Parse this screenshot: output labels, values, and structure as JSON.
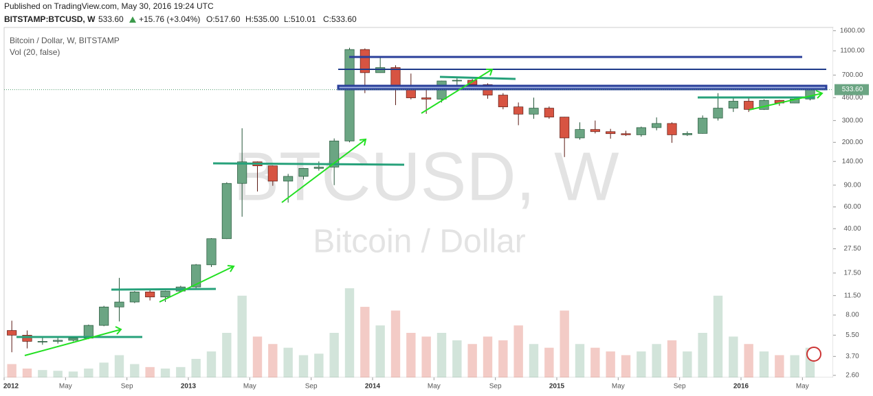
{
  "header": {
    "published": "Published on TradingView.com, May 30, 2016 19:24 UTC",
    "symbol": "BITSTAMP:BTCUSD, W",
    "price": "533.60",
    "change": "+15.76 (+3.04%)",
    "open": "O:517.60",
    "high": "H:535.00",
    "low": "L:510.01",
    "close": "C:533.60"
  },
  "chart_data": {
    "type": "candlestick",
    "title": "Bitcoin / Dollar, W, BITSTAMP",
    "subtitle": "Vol (20, false)",
    "watermark": "BTCUSD, W",
    "watermark_sub": "Bitcoin / Dollar",
    "log_scale": true,
    "up_color": "#6ba583",
    "down_color": "#d75442",
    "x": [
      "2012-01",
      "2012-02",
      "2012-03",
      "2012-04",
      "2012-05",
      "2012-06",
      "2012-07",
      "2012-08",
      "2012-09",
      "2012-10",
      "2012-11",
      "2012-12",
      "2013-01",
      "2013-02",
      "2013-03",
      "2013-04",
      "2013-05",
      "2013-06",
      "2013-07",
      "2013-08",
      "2013-09",
      "2013-10",
      "2013-11",
      "2013-12",
      "2014-01",
      "2014-02",
      "2014-03",
      "2014-04",
      "2014-05",
      "2014-06",
      "2014-07",
      "2014-08",
      "2014-09",
      "2014-10",
      "2014-11",
      "2014-12",
      "2015-01",
      "2015-02",
      "2015-03",
      "2015-04",
      "2015-05",
      "2015-06",
      "2015-07",
      "2015-08",
      "2015-09",
      "2015-10",
      "2015-11",
      "2015-12",
      "2016-01",
      "2016-02",
      "2016-03",
      "2016-04",
      "2016-05"
    ],
    "open": [
      6.0,
      5.5,
      4.9,
      4.9,
      5.0,
      5.2,
      6.6,
      9.3,
      10.2,
      12.3,
      11.2,
      12.5,
      13.5,
      20.4,
      33.2,
      93,
      139,
      129,
      97,
      106,
      123,
      126,
      205,
      1127,
      732,
      805,
      550,
      458,
      447,
      627,
      635,
      586,
      482,
      387,
      338,
      378,
      320,
      217,
      254,
      244,
      235,
      230,
      263,
      284,
      230,
      236,
      314,
      378,
      430,
      369,
      437,
      416,
      448
    ],
    "high": [
      7.2,
      6.0,
      5.4,
      5.3,
      5.3,
      6.7,
      9.5,
      16,
      12.5,
      12.9,
      12.6,
      13.8,
      20.7,
      33.5,
      95,
      260,
      140,
      130,
      111,
      124,
      140,
      215,
      1163,
      1150,
      1000,
      840,
      720,
      550,
      630,
      680,
      650,
      600,
      500,
      420,
      460,
      390,
      321,
      290,
      300,
      257,
      248,
      268,
      318,
      290,
      245,
      330,
      500,
      470,
      462,
      445,
      440,
      467,
      535
    ],
    "low": [
      4.0,
      4.3,
      4.6,
      4.7,
      4.9,
      5.1,
      6.5,
      7.1,
      10,
      10.5,
      10.2,
      12.3,
      13.2,
      19.6,
      33,
      50,
      80,
      89,
      65,
      100,
      118,
      90,
      200,
      500,
      730,
      400,
      445,
      340,
      420,
      540,
      560,
      450,
      370,
      275,
      310,
      310,
      152,
      210,
      236,
      214,
      225,
      222,
      250,
      198,
      225,
      235,
      300,
      352,
      352,
      366,
      395,
      414,
      437
    ],
    "close": [
      5.5,
      4.9,
      4.9,
      5.0,
      5.2,
      6.6,
      9.3,
      10.2,
      12.3,
      11.2,
      12.5,
      13.5,
      20.4,
      33.2,
      93,
      139,
      129,
      97,
      106,
      123,
      126,
      205,
      1127,
      732,
      805,
      550,
      458,
      447,
      627,
      635,
      586,
      482,
      387,
      338,
      378,
      320,
      217,
      254,
      244,
      235,
      230,
      263,
      284,
      230,
      236,
      314,
      378,
      430,
      369,
      437,
      416,
      448,
      533.6
    ],
    "volume": [
      18,
      12,
      10,
      9,
      8,
      12,
      20,
      30,
      18,
      14,
      12,
      14,
      25,
      35,
      60,
      110,
      55,
      45,
      40,
      30,
      32,
      60,
      120,
      95,
      70,
      90,
      60,
      55,
      60,
      50,
      45,
      55,
      50,
      70,
      45,
      40,
      90,
      45,
      40,
      35,
      30,
      35,
      45,
      50,
      35,
      60,
      110,
      55,
      45,
      35,
      30,
      30,
      40
    ],
    "last_price": {
      "value": 533.6,
      "label": "533.60"
    },
    "ylim": [
      2.5,
      1700
    ],
    "yticks": [
      {
        "value": 1600,
        "label": "1600.00"
      },
      {
        "value": 1100,
        "label": "1100.00"
      },
      {
        "value": 700,
        "label": "700.00"
      },
      {
        "value": 460,
        "label": "460.00"
      },
      {
        "value": 300,
        "label": "300.00"
      },
      {
        "value": 200,
        "label": "200.00"
      },
      {
        "value": 140,
        "label": "140.00"
      },
      {
        "value": 90,
        "label": "90.00"
      },
      {
        "value": 60,
        "label": "60.00"
      },
      {
        "value": 40,
        "label": "40.00"
      },
      {
        "value": 27.5,
        "label": "27.50"
      },
      {
        "value": 17.5,
        "label": "17.50"
      },
      {
        "value": 11.5,
        "label": "11.50"
      },
      {
        "value": 8,
        "label": "8.00"
      },
      {
        "value": 5.5,
        "label": "5.50"
      },
      {
        "value": 3.7,
        "label": "3.70"
      },
      {
        "value": 2.6,
        "label": "2.60"
      }
    ],
    "xlim": [
      "2012-01",
      "2016-07"
    ],
    "xticks": [
      {
        "value": "2012-01",
        "label": "2012"
      },
      {
        "value": "2012-05",
        "label": "May"
      },
      {
        "value": "2012-09",
        "label": "Sep"
      },
      {
        "value": "2013-01",
        "label": "2013"
      },
      {
        "value": "2013-05",
        "label": "May"
      },
      {
        "value": "2013-09",
        "label": "Sep"
      },
      {
        "value": "2014-01",
        "label": "2014"
      },
      {
        "value": "2014-05",
        "label": "May"
      },
      {
        "value": "2014-09",
        "label": "Sep"
      },
      {
        "value": "2015-01",
        "label": "2015"
      },
      {
        "value": "2015-05",
        "label": "May"
      },
      {
        "value": "2015-09",
        "label": "Sep"
      },
      {
        "value": "2016-01",
        "label": "2016"
      },
      {
        "value": "2016-05",
        "label": "May"
      }
    ]
  }
}
